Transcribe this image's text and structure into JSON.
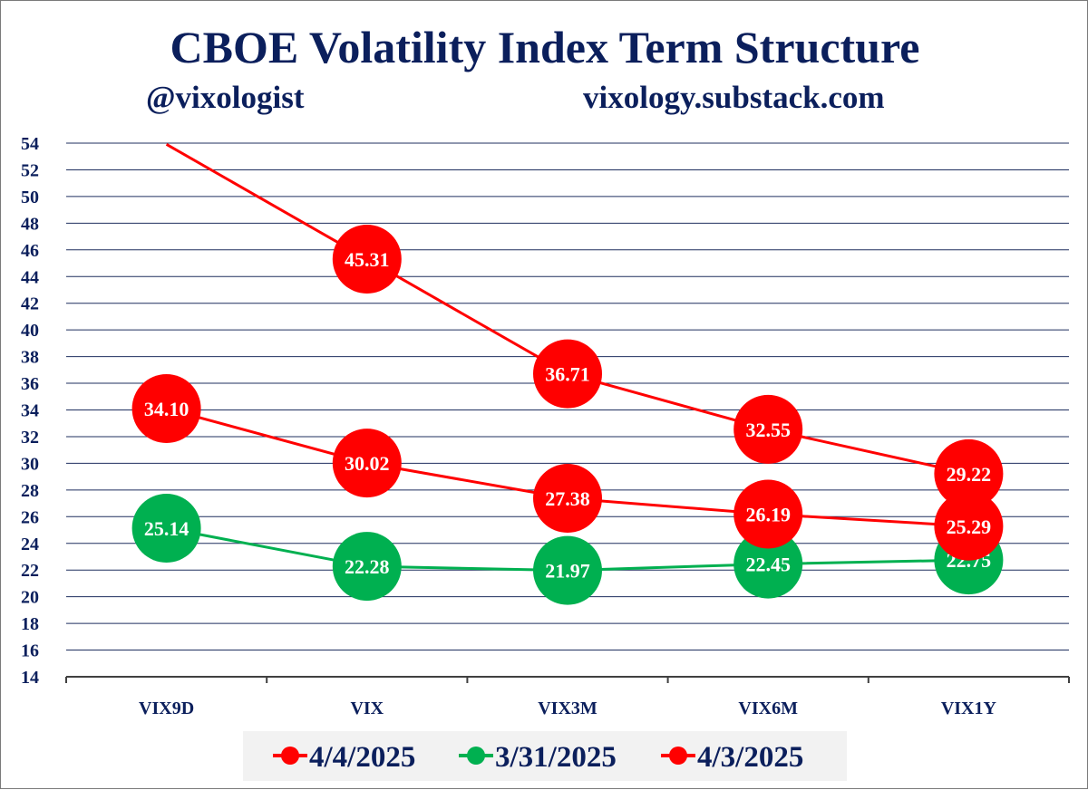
{
  "chart_data": {
    "type": "line",
    "title": "CBOE Volatility Index Term Structure",
    "handle": "@vixologist",
    "website": "vixology.substack.com",
    "categories": [
      "VIX9D",
      "VIX",
      "VIX3M",
      "VIX6M",
      "VIX1Y"
    ],
    "yticks": [
      "14",
      "16",
      "18",
      "20",
      "22",
      "24",
      "26",
      "28",
      "30",
      "32",
      "34",
      "36",
      "38",
      "40",
      "42",
      "44",
      "46",
      "48",
      "50",
      "52",
      "54"
    ],
    "ylim": [
      14,
      54
    ],
    "grid": true,
    "legend_position": "bottom",
    "series": [
      {
        "name": "4/4/2025",
        "color": "#ff0000",
        "values": [
          null,
          45.31,
          36.71,
          32.55,
          29.22
        ],
        "labels": [
          "",
          "45.31",
          "36.71",
          "32.55",
          "29.22"
        ],
        "offscale_start": true
      },
      {
        "name": "3/31/2025",
        "color": "#00b050",
        "values": [
          25.14,
          22.28,
          21.97,
          22.45,
          22.75
        ],
        "labels": [
          "25.14",
          "22.28",
          "21.97",
          "22.45",
          "22.75"
        ]
      },
      {
        "name": "4/3/2025",
        "color": "#ff0000",
        "values": [
          34.1,
          30.02,
          27.38,
          26.19,
          25.29
        ],
        "labels": [
          "34.10",
          "30.02",
          "27.38",
          "26.19",
          "25.29"
        ]
      }
    ]
  }
}
